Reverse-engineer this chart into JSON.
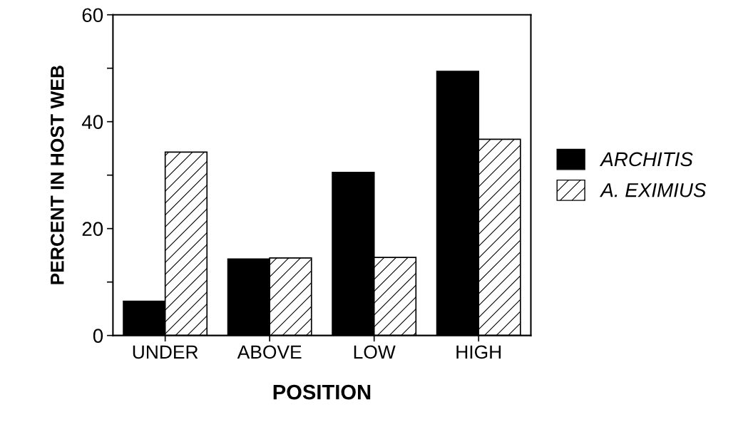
{
  "chart_data": {
    "type": "bar",
    "xlabel": "POSITION",
    "ylabel": "PERCENT IN HOST WEB",
    "categories": [
      "UNDER",
      "ABOVE",
      "LOW",
      "HIGH"
    ],
    "series": [
      {
        "name": "ARCHITIS",
        "color": "#000000",
        "values": [
          6.4,
          14.3,
          30.5,
          49.4
        ]
      },
      {
        "name": "A. EXIMIUS",
        "color": "#ffffff",
        "values": [
          34.3,
          14.5,
          14.6,
          36.7
        ]
      }
    ],
    "ylim": [
      0,
      60
    ],
    "yticks": [
      0,
      {
        "value": 10,
        "label": null
      },
      20,
      {
        "value": 30,
        "label": null
      },
      40,
      {
        "value": 50,
        "label": null
      },
      60
    ],
    "grid": false,
    "legend": "right"
  }
}
